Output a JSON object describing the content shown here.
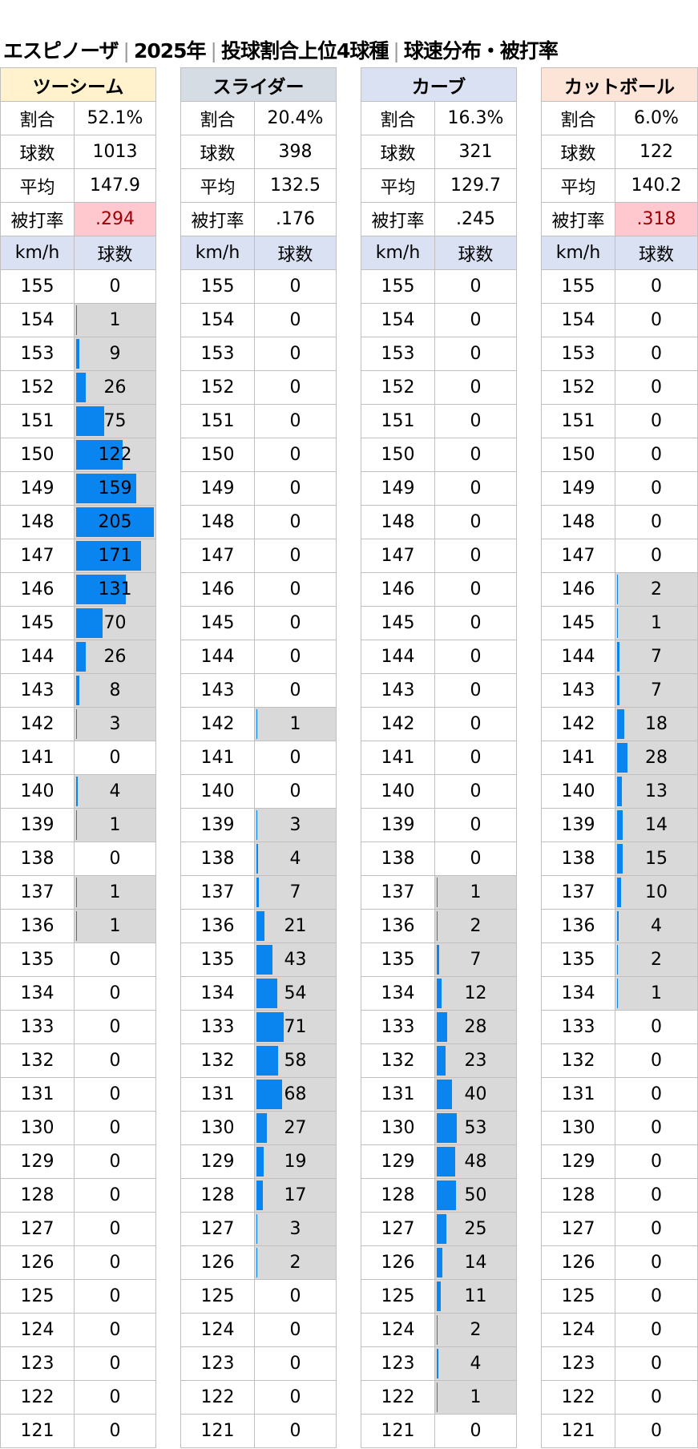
{
  "title": {
    "player": "エスピノーザ",
    "year": "2025年",
    "subject": "投球割合上位4球種",
    "metric": "球速分布・被打率"
  },
  "labels": {
    "ratio": "割合",
    "count": "球数",
    "avg": "平均",
    "babip": "被打率",
    "speed_col": "km/h",
    "count_col": "球数"
  },
  "colors": {
    "bar": "#0a84ee",
    "nonzero_bg": "#d9d9d9",
    "highlight_bg": "#ffc7ce",
    "highlight_text": "#9c0006"
  },
  "chart_data": {
    "type": "table",
    "bar_max": 205,
    "speeds": [
      155,
      154,
      153,
      152,
      151,
      150,
      149,
      148,
      147,
      146,
      145,
      144,
      143,
      142,
      141,
      140,
      139,
      138,
      137,
      136,
      135,
      134,
      133,
      132,
      131,
      130,
      129,
      128,
      127,
      126,
      125,
      124,
      123,
      122,
      121
    ],
    "pitches": [
      {
        "name": "ツーシーム",
        "header_color": "#fff2cc",
        "ratio": "52.1%",
        "count": "1013",
        "avg": "147.9",
        "babip": ".294",
        "babip_highlight": true,
        "counts": [
          0,
          1,
          9,
          26,
          75,
          122,
          159,
          205,
          171,
          131,
          70,
          26,
          8,
          3,
          0,
          4,
          1,
          0,
          1,
          1,
          0,
          0,
          0,
          0,
          0,
          0,
          0,
          0,
          0,
          0,
          0,
          0,
          0,
          0,
          0
        ]
      },
      {
        "name": "スライダー",
        "header_color": "#d6dce4",
        "ratio": "20.4%",
        "count": "398",
        "avg": "132.5",
        "babip": ".176",
        "babip_highlight": false,
        "counts": [
          0,
          0,
          0,
          0,
          0,
          0,
          0,
          0,
          0,
          0,
          0,
          0,
          0,
          1,
          0,
          0,
          3,
          4,
          7,
          21,
          43,
          54,
          71,
          58,
          68,
          27,
          19,
          17,
          3,
          2,
          0,
          0,
          0,
          0,
          0
        ]
      },
      {
        "name": "カーブ",
        "header_color": "#d9e1f2",
        "ratio": "16.3%",
        "count": "321",
        "avg": "129.7",
        "babip": ".245",
        "babip_highlight": false,
        "counts": [
          0,
          0,
          0,
          0,
          0,
          0,
          0,
          0,
          0,
          0,
          0,
          0,
          0,
          0,
          0,
          0,
          0,
          0,
          1,
          2,
          7,
          12,
          28,
          23,
          40,
          53,
          48,
          50,
          25,
          14,
          11,
          2,
          4,
          1,
          0
        ]
      },
      {
        "name": "カットボール",
        "header_color": "#fce4d6",
        "ratio": "6.0%",
        "count": "122",
        "avg": "140.2",
        "babip": ".318",
        "babip_highlight": true,
        "counts": [
          0,
          0,
          0,
          0,
          0,
          0,
          0,
          0,
          0,
          2,
          1,
          7,
          7,
          18,
          28,
          13,
          14,
          15,
          10,
          4,
          2,
          1,
          0,
          0,
          0,
          0,
          0,
          0,
          0,
          0,
          0,
          0,
          0,
          0,
          0
        ]
      }
    ]
  }
}
